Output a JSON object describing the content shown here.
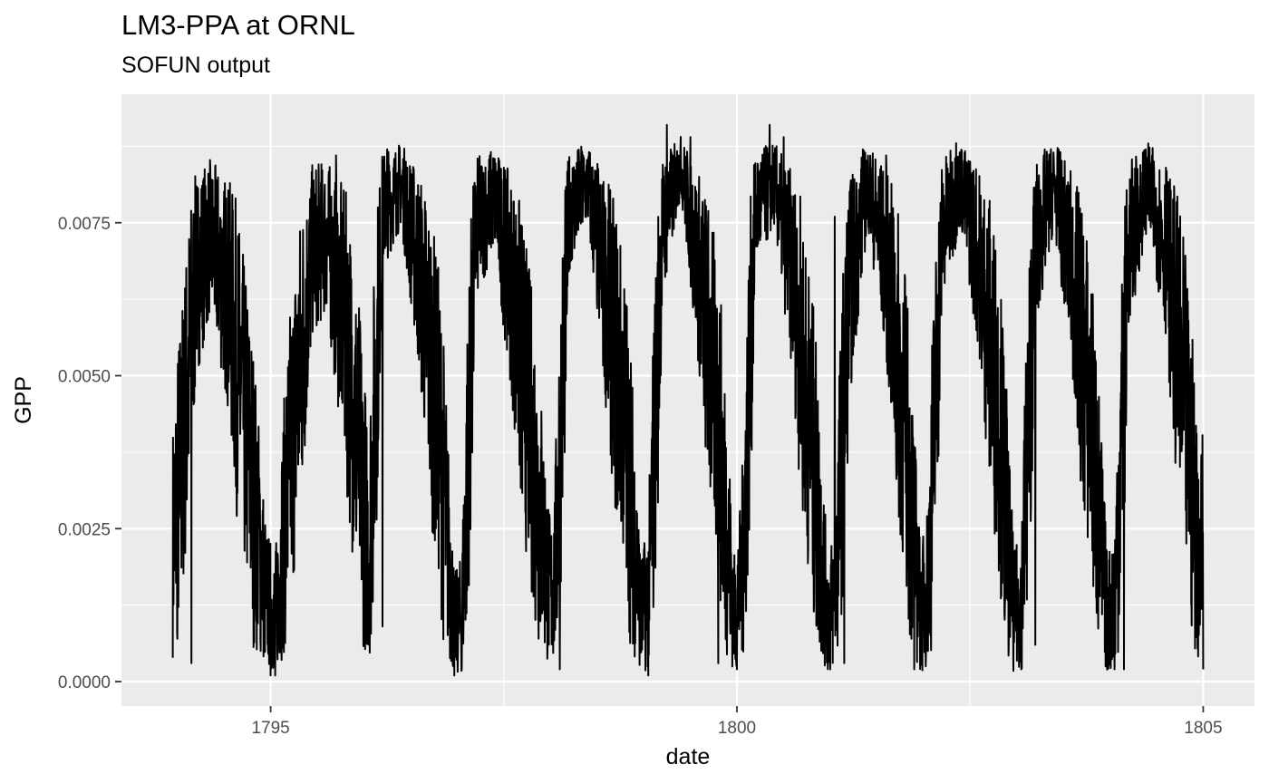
{
  "chart_data": {
    "type": "line",
    "title": "LM3-PPA at ORNL",
    "subtitle": "SOFUN output",
    "xlabel": "date",
    "ylabel": "GPP",
    "x_ticks": [
      1795,
      1800,
      1805
    ],
    "y_ticks": [
      "0.0000",
      "0.0025",
      "0.0050",
      "0.0075"
    ],
    "xlim": [
      1793.4,
      1805.55
    ],
    "ylim": [
      -0.0004,
      0.0096
    ],
    "grid": true,
    "line_color": "#000000",
    "panel_color": "#ebebeb",
    "x_range": [
      1793.95,
      1805.0
    ],
    "seasonal_profile": {
      "x": [
        1793.95,
        1794.05,
        1794.2,
        1794.35,
        1794.55,
        1794.75,
        1794.95,
        1795.05,
        1795.25,
        1795.45,
        1795.6,
        1795.8,
        1796.0,
        1796.05,
        1796.2,
        1796.4,
        1796.6,
        1796.8,
        1796.97,
        1797.05,
        1797.2,
        1797.4,
        1797.6,
        1797.8,
        1798.0,
        1798.05,
        1798.2,
        1798.4,
        1798.6,
        1798.8,
        1798.97,
        1799.05,
        1799.2,
        1799.4,
        1799.6,
        1799.8,
        1799.97,
        1800.05,
        1800.2,
        1800.4,
        1800.6,
        1800.8,
        1800.97,
        1801.05,
        1801.2,
        1801.4,
        1801.6,
        1801.8,
        1801.97,
        1802.05,
        1802.2,
        1802.4,
        1802.6,
        1802.8,
        1802.97,
        1803.05,
        1803.2,
        1803.4,
        1803.6,
        1803.8,
        1803.97,
        1804.05,
        1804.2,
        1804.4,
        1804.6,
        1804.8,
        1804.97,
        1805.0
      ],
      "y": [
        0.0025,
        0.004,
        0.0068,
        0.0074,
        0.0065,
        0.0042,
        0.0015,
        0.0012,
        0.0045,
        0.0072,
        0.0074,
        0.006,
        0.0032,
        0.0022,
        0.0078,
        0.0082,
        0.0068,
        0.0045,
        0.001,
        0.0012,
        0.0075,
        0.008,
        0.0065,
        0.0042,
        0.0015,
        0.002,
        0.0078,
        0.0082,
        0.0065,
        0.0045,
        0.0012,
        0.0015,
        0.0075,
        0.0085,
        0.0068,
        0.0045,
        0.0012,
        0.0018,
        0.0078,
        0.0082,
        0.0068,
        0.0042,
        0.0012,
        0.0015,
        0.0065,
        0.0082,
        0.007,
        0.0045,
        0.0012,
        0.0018,
        0.0075,
        0.0082,
        0.007,
        0.0048,
        0.0012,
        0.0015,
        0.0072,
        0.0082,
        0.0068,
        0.0045,
        0.0012,
        0.0015,
        0.0072,
        0.0082,
        0.0072,
        0.0048,
        0.002,
        0.003
      ]
    },
    "peaks": {
      "x": [
        1794.2,
        1794.3,
        1795.7,
        1796.25,
        1796.45,
        1797.35,
        1797.5,
        1798.35,
        1799.25,
        1799.5,
        1800.35,
        1800.5,
        1801.05,
        1801.35,
        1801.6,
        1802.35,
        1802.5,
        1803.3,
        1803.45,
        1804.45,
        1804.6
      ],
      "y": [
        0.0081,
        0.0081,
        0.0086,
        0.0087,
        0.0085,
        0.0086,
        0.0084,
        0.0086,
        0.0091,
        0.0089,
        0.0091,
        0.0089,
        0.0076,
        0.0087,
        0.0086,
        0.0088,
        0.0085,
        0.0087,
        0.0087,
        0.0085,
        0.0084
      ]
    },
    "troughs": {
      "x": [
        1794.0,
        1794.15,
        1795.0,
        1795.05,
        1796.2,
        1796.97,
        1797.05,
        1798.1,
        1799.05,
        1799.8,
        1800.0,
        1801.0,
        1801.15,
        1801.9,
        1802.05,
        1803.05,
        1803.2,
        1804.05,
        1804.15,
        1805.0
      ],
      "y": [
        0.0007,
        0.0003,
        0.0001,
        0.0001,
        0.0009,
        0.0001,
        0.0002,
        0.0002,
        0.0001,
        0.0003,
        0.0002,
        0.0002,
        0.0003,
        0.0002,
        0.0005,
        0.0002,
        0.0006,
        0.0002,
        0.0002,
        0.0002
      ]
    }
  }
}
